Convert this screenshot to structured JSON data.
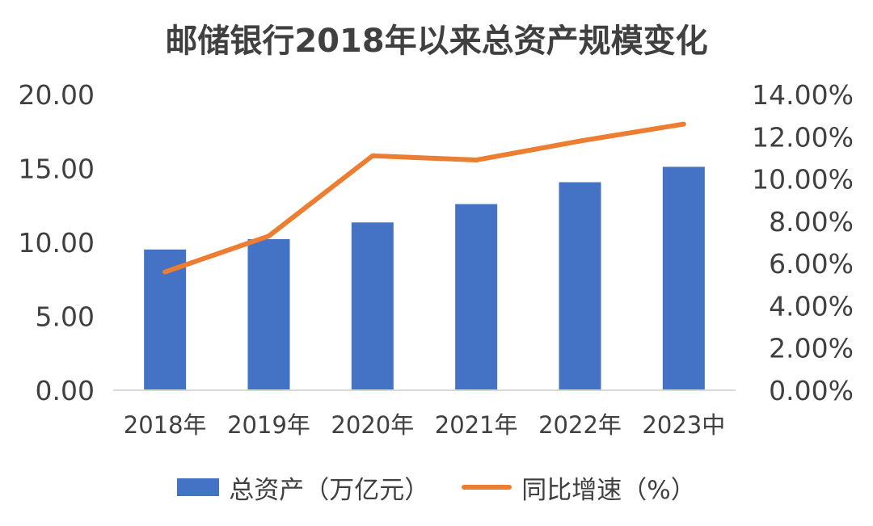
{
  "chart_data": {
    "type": "bar",
    "title": "邮储银行2018年以来总资产规模变化",
    "categories": [
      "2018年",
      "2019年",
      "2020年",
      "2021年",
      "2022年",
      "2023中"
    ],
    "series": [
      {
        "name": "总资产（万亿元）",
        "type": "bar",
        "axis": "left",
        "color": "#4472C4",
        "values": [
          9.52,
          10.22,
          11.35,
          12.59,
          14.07,
          15.11
        ]
      },
      {
        "name": "同比增速（%）",
        "type": "line",
        "axis": "right",
        "color": "#ED7D31",
        "values": [
          5.6,
          7.3,
          11.1,
          10.9,
          11.8,
          12.6
        ]
      }
    ],
    "left_axis": {
      "ylim": [
        0,
        20
      ],
      "ticks": [
        "0.00",
        "5.00",
        "10.00",
        "15.00",
        "20.00"
      ]
    },
    "right_axis": {
      "ylim": [
        0,
        14
      ],
      "ticks": [
        "0.00%",
        "2.00%",
        "4.00%",
        "6.00%",
        "8.00%",
        "10.00%",
        "12.00%",
        "14.00%"
      ]
    },
    "grid": false,
    "legend": "bottom"
  }
}
